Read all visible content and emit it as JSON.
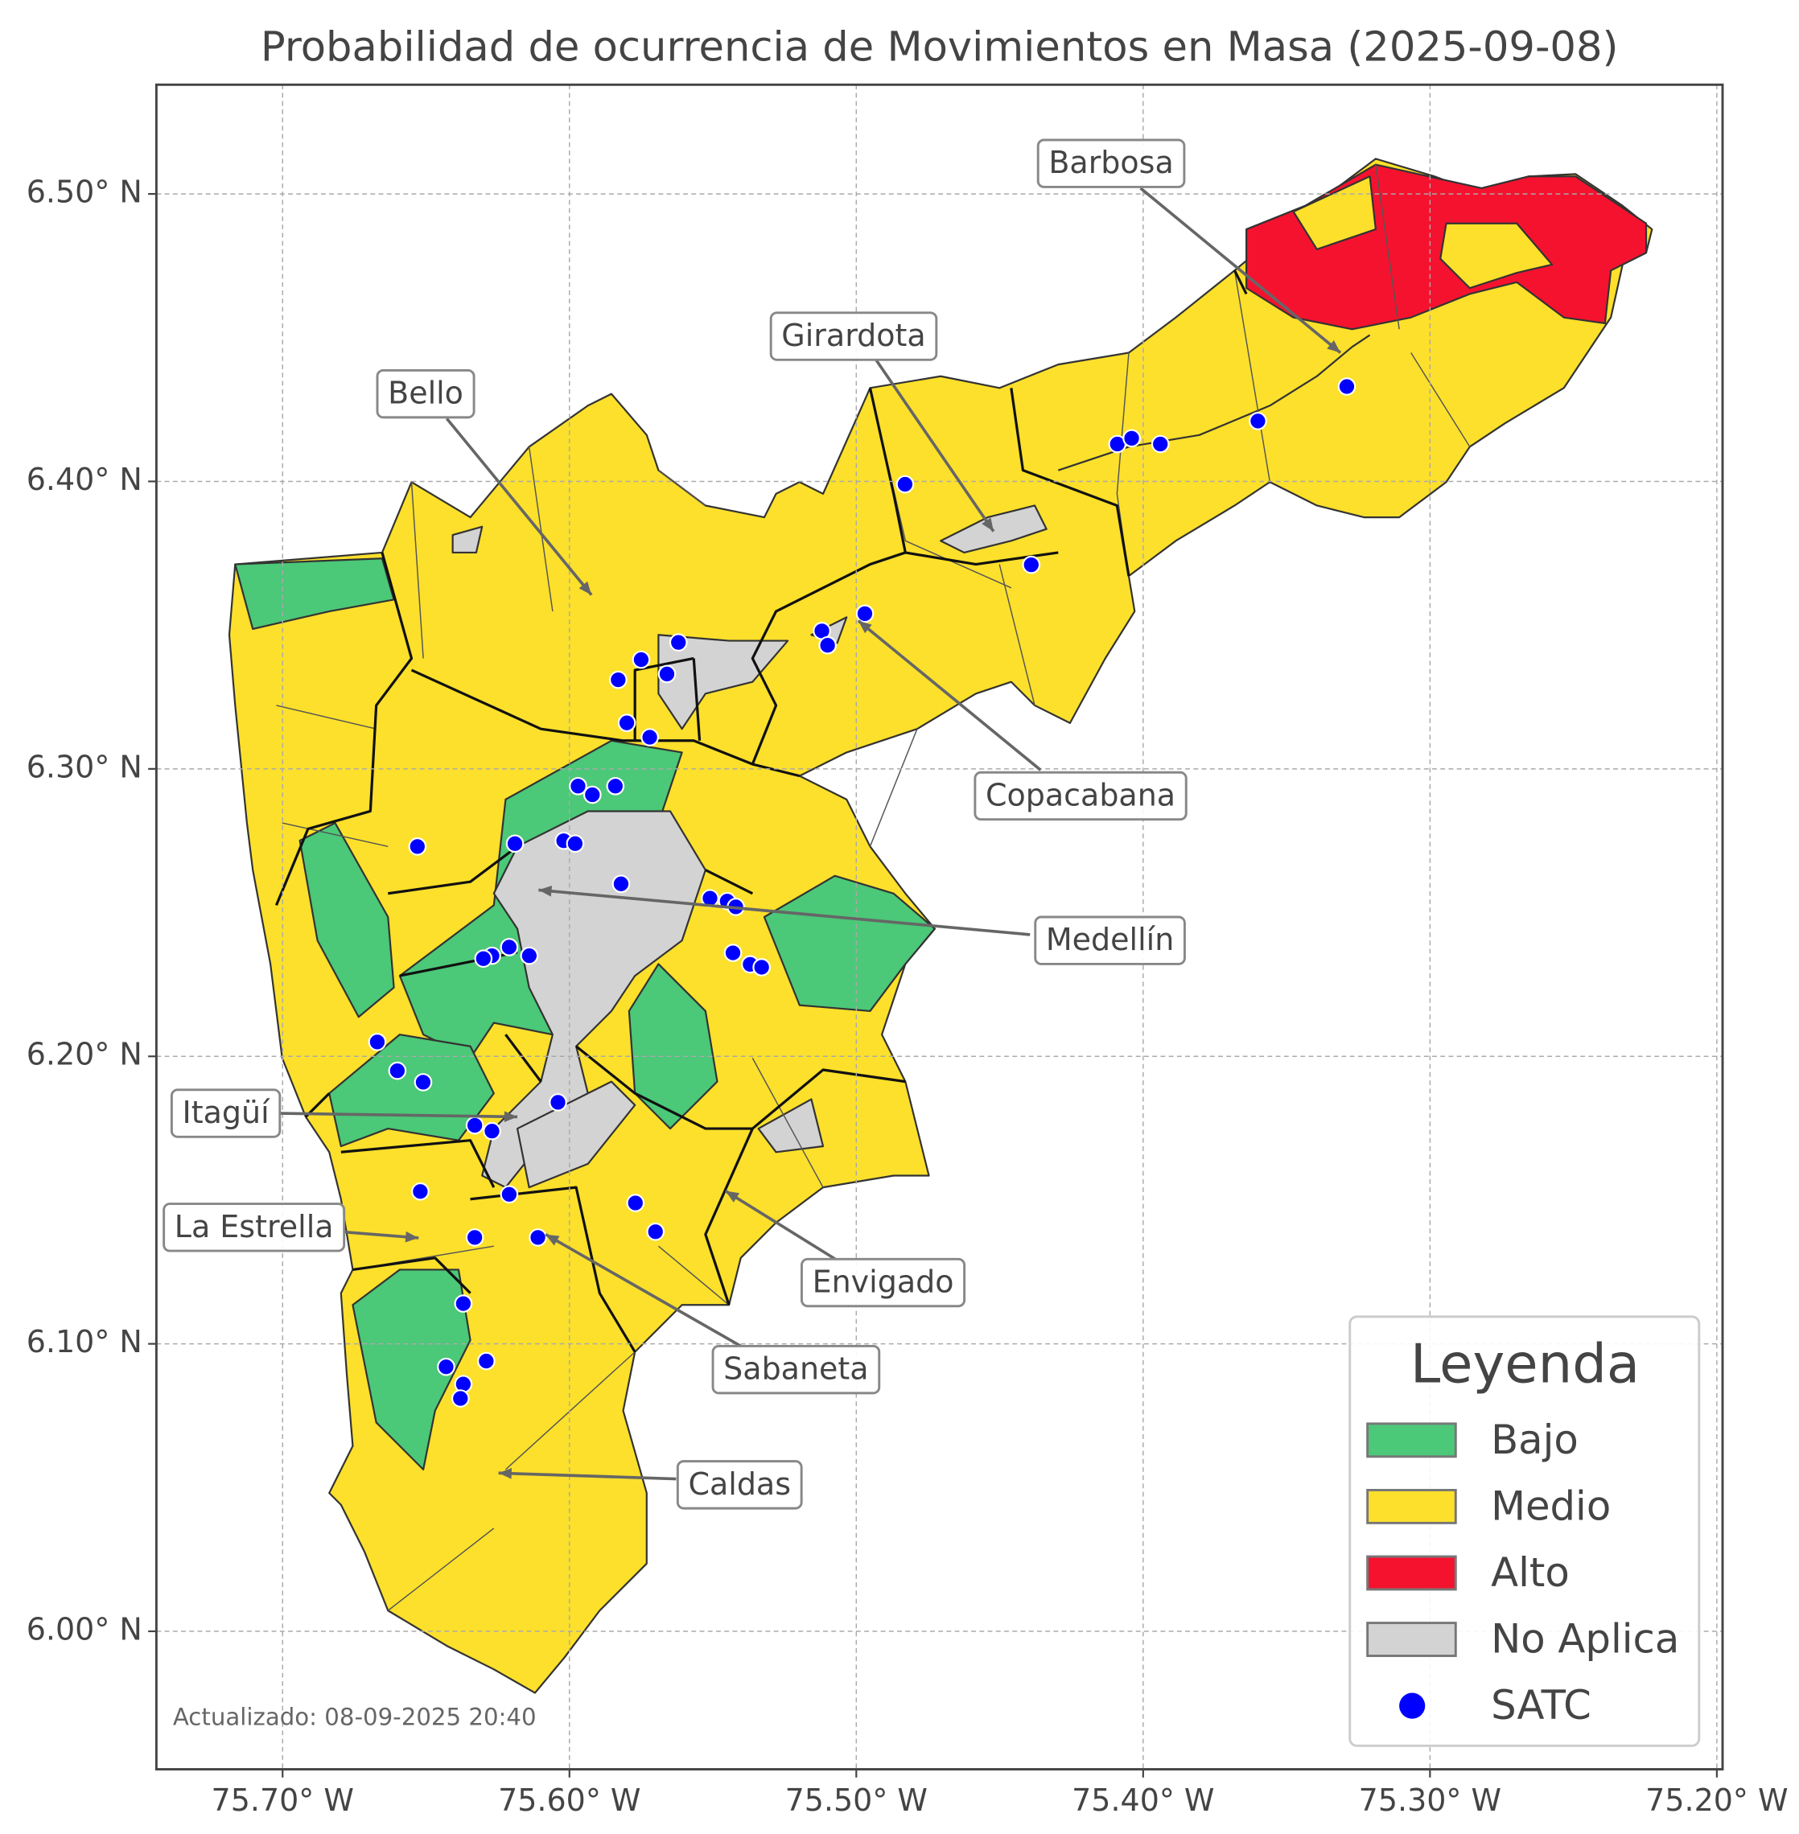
{
  "chart_data": {
    "type": "map",
    "title": "Probabilidad de ocurrencia de Movimientos en Masa (2025-09-08)",
    "xlim": [
      -75.744,
      -75.198
    ],
    "ylim": [
      5.952,
      6.538
    ],
    "xticks": [
      {
        "value": -75.7,
        "label": "75.70° W"
      },
      {
        "value": -75.6,
        "label": "75.60° W"
      },
      {
        "value": -75.5,
        "label": "75.50° W"
      },
      {
        "value": -75.4,
        "label": "75.40° W"
      },
      {
        "value": -75.3,
        "label": "75.30° W"
      },
      {
        "value": -75.2,
        "label": "75.20° W"
      }
    ],
    "yticks": [
      {
        "value": 6.0,
        "label": "6.00° N"
      },
      {
        "value": 6.1,
        "label": "6.10° N"
      },
      {
        "value": 6.2,
        "label": "6.20° N"
      },
      {
        "value": 6.3,
        "label": "6.30° N"
      },
      {
        "value": 6.4,
        "label": "6.40° N"
      },
      {
        "value": 6.5,
        "label": "6.50° N"
      }
    ],
    "grid": true,
    "legend_title": "Leyenda",
    "legend_position": "lower right",
    "legend": [
      {
        "label": "Bajo",
        "color": "#4bc878"
      },
      {
        "label": "Medio",
        "color": "#fce02b"
      },
      {
        "label": "Alto",
        "color": "#f5122f"
      },
      {
        "label": "No Aplica",
        "color": "#d3d3d3"
      }
    ],
    "series": [
      {
        "name": "SATC",
        "color": "#0000ff",
        "x": [
          -75.329,
          -75.36,
          -75.409,
          -75.404,
          -75.394,
          -75.483,
          -75.439,
          -75.497,
          -75.512,
          -75.51,
          -75.562,
          -75.575,
          -75.566,
          -75.583,
          -75.58,
          -75.572,
          -75.597,
          -75.584,
          -75.592,
          -75.653,
          -75.619,
          -75.602,
          -75.598,
          -75.582,
          -75.551,
          -75.545,
          -75.542,
          -75.543,
          -75.537,
          -75.533,
          -75.621,
          -75.627,
          -75.63,
          -75.614,
          -75.667,
          -75.66,
          -75.651,
          -75.604,
          -75.633,
          -75.627,
          -75.652,
          -75.621,
          -75.577,
          -75.57,
          -75.633,
          -75.611,
          -75.637,
          -75.643,
          -75.629,
          -75.637,
          -75.638
        ],
        "y": [
          6.433,
          6.421,
          6.413,
          6.415,
          6.413,
          6.399,
          6.371,
          6.354,
          6.348,
          6.343,
          6.344,
          6.338,
          6.333,
          6.331,
          6.316,
          6.311,
          6.294,
          6.294,
          6.291,
          6.273,
          6.274,
          6.275,
          6.274,
          6.26,
          6.255,
          6.254,
          6.252,
          6.236,
          6.232,
          6.231,
          6.238,
          6.235,
          6.234,
          6.235,
          6.205,
          6.195,
          6.191,
          6.184,
          6.176,
          6.174,
          6.153,
          6.152,
          6.149,
          6.139,
          6.137,
          6.137,
          6.114,
          6.092,
          6.094,
          6.086,
          6.081
        ]
      }
    ],
    "annotations": [
      "Barbosa",
      "Girardota",
      "Bello",
      "Copacabana",
      "Medellín",
      "Itagüí",
      "La Estrella",
      "Envigado",
      "Sabaneta",
      "Caldas"
    ],
    "footnote": "Actualizado: 08-09-2025 20:40"
  }
}
